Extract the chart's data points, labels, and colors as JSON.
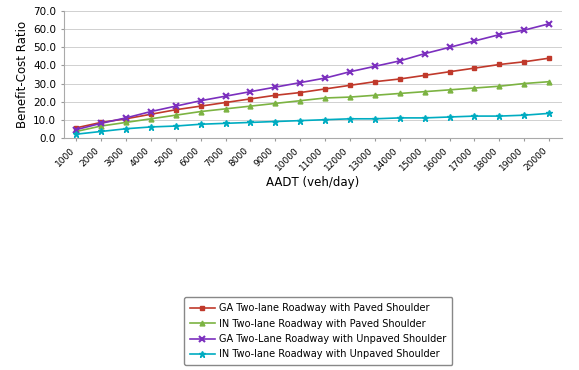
{
  "x": [
    1000,
    2000,
    3000,
    4000,
    5000,
    6000,
    7000,
    8000,
    9000,
    10000,
    11000,
    12000,
    13000,
    14000,
    15000,
    16000,
    17000,
    18000,
    19000,
    20000
  ],
  "ga_paved": [
    5.5,
    8.5,
    10.5,
    13.0,
    15.5,
    17.5,
    19.5,
    21.5,
    23.5,
    25.0,
    27.0,
    29.0,
    31.0,
    32.5,
    34.5,
    36.5,
    38.5,
    40.5,
    42.0,
    44.0
  ],
  "in_paved": [
    3.5,
    6.5,
    8.5,
    10.5,
    12.5,
    14.5,
    16.0,
    17.5,
    19.0,
    20.5,
    22.0,
    22.5,
    23.5,
    24.5,
    25.5,
    26.5,
    27.5,
    28.5,
    30.0,
    31.0
  ],
  "ga_unpaved": [
    4.5,
    8.0,
    11.0,
    14.5,
    17.5,
    20.5,
    23.0,
    25.5,
    28.0,
    30.5,
    33.0,
    36.5,
    39.5,
    42.5,
    46.5,
    50.0,
    53.5,
    57.0,
    59.5,
    63.0
  ],
  "in_unpaved": [
    2.0,
    3.5,
    5.0,
    6.0,
    6.5,
    7.5,
    8.0,
    8.5,
    9.0,
    9.5,
    10.0,
    10.5,
    10.5,
    11.0,
    11.0,
    11.5,
    12.0,
    12.0,
    12.5,
    13.5
  ],
  "ga_paved_color": "#C0392B",
  "in_paved_color": "#7CB342",
  "ga_unpaved_color": "#7B2FBE",
  "in_unpaved_color": "#00ACC1",
  "xlabel": "AADT (veh/day)",
  "ylabel": "Benefit-Cost Ratio",
  "ylim": [
    0,
    70
  ],
  "yticks": [
    0.0,
    10.0,
    20.0,
    30.0,
    40.0,
    50.0,
    60.0,
    70.0
  ],
  "xticks": [
    1000,
    2000,
    3000,
    4000,
    5000,
    6000,
    7000,
    8000,
    9000,
    10000,
    11000,
    12000,
    13000,
    14000,
    15000,
    16000,
    17000,
    18000,
    19000,
    20000
  ],
  "legend_ga_paved": "GA Two-lane Roadway with Paved Shoulder",
  "legend_in_paved": "IN Two-lane Roadway with Paved Shoulder",
  "legend_ga_unpaved": "GA Two-Lane Roadway with Unpaved Shoulder",
  "legend_in_unpaved": "IN Two-lane Roadway with Unpaved Shoulder",
  "xlim_left": 500,
  "xlim_right": 20500
}
